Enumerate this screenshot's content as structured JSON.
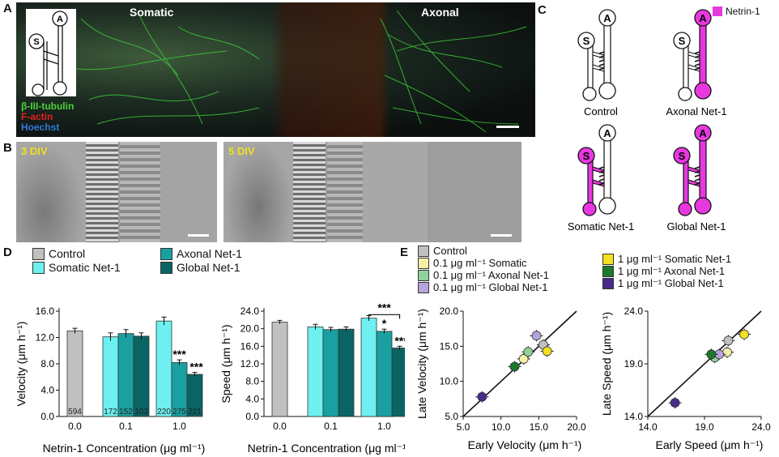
{
  "panels": {
    "A": {
      "letter": "A",
      "left_label": "Somatic",
      "right_label": "Axonal",
      "stains": [
        {
          "text": "β-III-tubulin",
          "color": "#4cd23a"
        },
        {
          "text": "F-actin",
          "color": "#e02020"
        },
        {
          "text": "Hoechst",
          "color": "#2f7bd8"
        }
      ],
      "chip": {
        "s": "S",
        "a": "A"
      }
    },
    "B": {
      "letter": "B",
      "labels": [
        "3 DIV",
        "5 DIV"
      ]
    },
    "C": {
      "letter": "C",
      "legend": "Netrin-1",
      "legend_color": "#e838e0",
      "chips": [
        {
          "name": "Control",
          "s": "S",
          "a": "A"
        },
        {
          "name": "Axonal Net-1",
          "s": "S",
          "a": "A"
        },
        {
          "name": "Somatic Net-1",
          "s": "S",
          "a": "A"
        },
        {
          "name": "Global Net-1",
          "s": "S",
          "a": "A"
        }
      ]
    },
    "D": {
      "letter": "D",
      "legend": [
        {
          "name": "Control",
          "color": "#c0c0c0"
        },
        {
          "name": "Somatic Net-1",
          "color": "#6ef0f0"
        },
        {
          "name": "Axonal Net-1",
          "color": "#1aa0a0"
        },
        {
          "name": "Global Net-1",
          "color": "#0b6464"
        }
      ]
    },
    "E": {
      "letter": "E",
      "legend_left": [
        {
          "name": "Control",
          "color": "#c0c0c0"
        },
        {
          "name": "0.1 μg ml⁻¹ Somatic",
          "color": "#f4f0a8"
        },
        {
          "name": "0.1 μg ml⁻¹ Axonal Net-1",
          "color": "#8fd39a"
        },
        {
          "name": "0.1 μg ml⁻¹ Global Net-1",
          "color": "#b7a4dc"
        }
      ],
      "legend_right": [
        {
          "name": "1 μg ml⁻¹ Somatic Net-1",
          "color": "#f2e021"
        },
        {
          "name": "1 μg ml⁻¹ Axonal Net-1",
          "color": "#1a7a2a"
        },
        {
          "name": "1 μg ml⁻¹ Global Net-1",
          "color": "#4a2a8a"
        }
      ]
    }
  },
  "chart_data": [
    {
      "type": "bar",
      "ylabel": "Velocity (μm h⁻¹)",
      "xlabel": "Netrin-1 Concentration (μg ml⁻¹)",
      "ylim": [
        0,
        16
      ],
      "yticks": [
        "0.0",
        "4.0",
        "8.0",
        "12.0",
        "16.0"
      ],
      "groups": [
        {
          "label": "0.0",
          "bars": [
            {
              "value": 13.0,
              "err": 0.4,
              "n": "594",
              "color": "#c0c0c0",
              "sig": ""
            }
          ]
        },
        {
          "label": "0.1",
          "bars": [
            {
              "value": 12.1,
              "err": 0.6,
              "n": "172",
              "color": "#6ef0f0",
              "sig": ""
            },
            {
              "value": 12.6,
              "err": 0.6,
              "n": "152",
              "color": "#1aa0a0",
              "sig": ""
            },
            {
              "value": 12.2,
              "err": 0.5,
              "n": "103",
              "color": "#0b6464",
              "sig": ""
            }
          ]
        },
        {
          "label": "1.0",
          "bars": [
            {
              "value": 14.5,
              "err": 0.6,
              "n": "220",
              "color": "#6ef0f0",
              "sig": ""
            },
            {
              "value": 8.2,
              "err": 0.4,
              "n": "275",
              "color": "#1aa0a0",
              "sig": "***"
            },
            {
              "value": 6.4,
              "err": 0.3,
              "n": "221",
              "color": "#0b6464",
              "sig": "***"
            }
          ]
        }
      ]
    },
    {
      "type": "bar",
      "ylabel": "Speed (μm h⁻¹)",
      "xlabel": "Netrin-1 Concentration (μg ml⁻¹)",
      "ylim": [
        0,
        24
      ],
      "yticks": [
        "0.0",
        "4.0",
        "8.0",
        "12.0",
        "16.0",
        "20.0",
        "24.0"
      ],
      "bracket": "***",
      "groups": [
        {
          "label": "0.0",
          "bars": [
            {
              "value": 21.5,
              "err": 0.4,
              "color": "#c0c0c0",
              "sig": ""
            }
          ]
        },
        {
          "label": "0.1",
          "bars": [
            {
              "value": 20.4,
              "err": 0.6,
              "color": "#6ef0f0",
              "sig": ""
            },
            {
              "value": 19.8,
              "err": 0.5,
              "color": "#1aa0a0",
              "sig": ""
            },
            {
              "value": 19.9,
              "err": 0.5,
              "color": "#0b6464",
              "sig": ""
            }
          ]
        },
        {
          "label": "1.0",
          "bars": [
            {
              "value": 22.4,
              "err": 0.6,
              "color": "#6ef0f0",
              "sig": ""
            },
            {
              "value": 19.4,
              "err": 0.5,
              "color": "#1aa0a0",
              "sig": "*"
            },
            {
              "value": 15.6,
              "err": 0.4,
              "color": "#0b6464",
              "sig": "***"
            }
          ]
        }
      ]
    },
    {
      "type": "scatter",
      "xlabel": "Early  Velocity (μm h⁻¹)",
      "ylabel": "Late Velocity (μm h⁻¹)",
      "xlim": [
        5,
        20
      ],
      "ylim": [
        5,
        20
      ],
      "xticks": [
        "5.0",
        "10.0",
        "15.0",
        "20.0"
      ],
      "yticks": [
        "5.0",
        "10.0",
        "15.0",
        "20.0"
      ],
      "identity_line": true,
      "points": [
        {
          "name": "Control",
          "x": 15.6,
          "y": 15.2,
          "color": "#c0c0c0"
        },
        {
          "name": "0.1 μg ml⁻¹ Somatic",
          "x": 13.0,
          "y": 13.2,
          "color": "#f4f0a8"
        },
        {
          "name": "0.1 μg ml⁻¹ Axonal Net-1",
          "x": 13.6,
          "y": 14.2,
          "color": "#8fd39a"
        },
        {
          "name": "0.1 μg ml⁻¹ Global Net-1",
          "x": 14.7,
          "y": 16.5,
          "color": "#b7a4dc"
        },
        {
          "name": "1 μg ml⁻¹ Somatic Net-1",
          "x": 16.1,
          "y": 14.3,
          "color": "#f2e021"
        },
        {
          "name": "1 μg ml⁻¹ Axonal Net-1",
          "x": 11.8,
          "y": 12.1,
          "color": "#1a7a2a"
        },
        {
          "name": "1 μg ml⁻¹ Global Net-1",
          "x": 7.5,
          "y": 7.8,
          "color": "#4a2a8a"
        }
      ]
    },
    {
      "type": "scatter",
      "xlabel": "Early  Speed (μm h⁻¹)",
      "ylabel": "Late Speed (μm h⁻¹)",
      "xlim": [
        14,
        24
      ],
      "ylim": [
        14,
        24
      ],
      "xticks": [
        "14.0",
        "19.0",
        "24.0"
      ],
      "yticks": [
        "14.0",
        "19.0",
        "24.0"
      ],
      "identity_line": true,
      "points": [
        {
          "name": "Control",
          "x": 21.1,
          "y": 21.2,
          "color": "#c0c0c0"
        },
        {
          "name": "0.1 μg ml⁻¹ Somatic",
          "x": 21.0,
          "y": 20.1,
          "color": "#f4f0a8"
        },
        {
          "name": "0.1 μg ml⁻¹ Axonal Net-1",
          "x": 19.9,
          "y": 19.6,
          "color": "#8fd39a"
        },
        {
          "name": "0.1 μg ml⁻¹ Global Net-1",
          "x": 20.3,
          "y": 19.9,
          "color": "#b7a4dc"
        },
        {
          "name": "1 μg ml⁻¹ Somatic Net-1",
          "x": 22.5,
          "y": 21.8,
          "color": "#f2e021"
        },
        {
          "name": "1 μg ml⁻¹ Axonal Net-1",
          "x": 19.6,
          "y": 19.9,
          "color": "#1a7a2a"
        },
        {
          "name": "1 μg ml⁻¹ Global Net-1",
          "x": 16.4,
          "y": 15.3,
          "color": "#4a2a8a"
        }
      ]
    }
  ]
}
